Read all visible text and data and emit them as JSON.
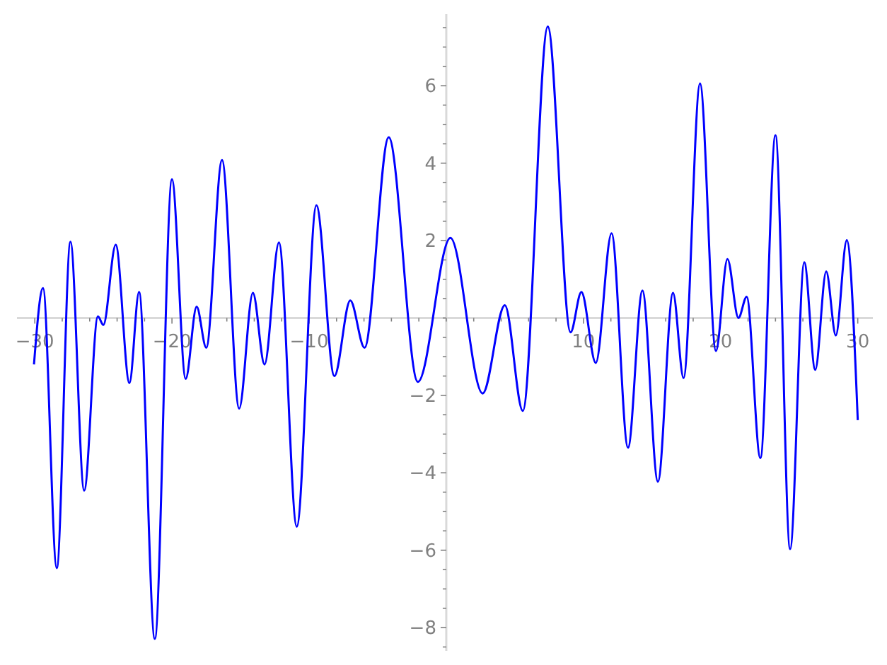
{
  "chart_data": {
    "type": "line",
    "xlim": [
      -31.3,
      31.1
    ],
    "ylim": [
      -8.6,
      7.85
    ],
    "grid": false,
    "line_style": "solid",
    "marker": "none",
    "xticks": [
      {
        "value": -30,
        "label": "−30"
      },
      {
        "value": -28,
        "label": null
      },
      {
        "value": -26,
        "label": null
      },
      {
        "value": -24,
        "label": null
      },
      {
        "value": -22,
        "label": null
      },
      {
        "value": -20,
        "label": "−20"
      },
      {
        "value": -18,
        "label": null
      },
      {
        "value": -16,
        "label": null
      },
      {
        "value": -14,
        "label": null
      },
      {
        "value": -12,
        "label": null
      },
      {
        "value": -10,
        "label": "−10"
      },
      {
        "value": -8,
        "label": null
      },
      {
        "value": -6,
        "label": null
      },
      {
        "value": -4,
        "label": null
      },
      {
        "value": -2,
        "label": null
      },
      {
        "value": 0,
        "label": null
      },
      {
        "value": 2,
        "label": null
      },
      {
        "value": 4,
        "label": null
      },
      {
        "value": 6,
        "label": null
      },
      {
        "value": 8,
        "label": null
      },
      {
        "value": 10,
        "label": "10"
      },
      {
        "value": 12,
        "label": null
      },
      {
        "value": 14,
        "label": null
      },
      {
        "value": 16,
        "label": null
      },
      {
        "value": 18,
        "label": null
      },
      {
        "value": 20,
        "label": "20"
      },
      {
        "value": 22,
        "label": null
      },
      {
        "value": 24,
        "label": null
      },
      {
        "value": 26,
        "label": null
      },
      {
        "value": 28,
        "label": null
      },
      {
        "value": 30,
        "label": "30"
      }
    ],
    "yticks": [
      {
        "value": -8.5,
        "label": null
      },
      {
        "value": -8,
        "label": "−8"
      },
      {
        "value": -7.5,
        "label": null
      },
      {
        "value": -7,
        "label": null
      },
      {
        "value": -6.5,
        "label": null
      },
      {
        "value": -6,
        "label": "−6"
      },
      {
        "value": -5.5,
        "label": null
      },
      {
        "value": -5,
        "label": null
      },
      {
        "value": -4.5,
        "label": null
      },
      {
        "value": -4,
        "label": "−4"
      },
      {
        "value": -3.5,
        "label": null
      },
      {
        "value": -3,
        "label": null
      },
      {
        "value": -2.5,
        "label": null
      },
      {
        "value": -2,
        "label": "−2"
      },
      {
        "value": -1.5,
        "label": null
      },
      {
        "value": -1,
        "label": null
      },
      {
        "value": -0.5,
        "label": null
      },
      {
        "value": 0,
        "label": null
      },
      {
        "value": 0.5,
        "label": null
      },
      {
        "value": 1,
        "label": null
      },
      {
        "value": 1.5,
        "label": null
      },
      {
        "value": 2,
        "label": "2"
      },
      {
        "value": 2.5,
        "label": null
      },
      {
        "value": 3,
        "label": null
      },
      {
        "value": 3.5,
        "label": null
      },
      {
        "value": 4,
        "label": "4"
      },
      {
        "value": 4.5,
        "label": null
      },
      {
        "value": 5,
        "label": null
      },
      {
        "value": 5.5,
        "label": null
      },
      {
        "value": 6,
        "label": "6"
      },
      {
        "value": 6.5,
        "label": null
      },
      {
        "value": 7,
        "label": null
      },
      {
        "value": 7.5,
        "label": null
      }
    ],
    "series": [
      {
        "color": "#0000ff",
        "x": [
          -30.06,
          -29.4,
          -28.4,
          -27.4,
          -26.4,
          -25.4,
          -25.0,
          -24.1,
          -23.1,
          -22.4,
          -21.25,
          -20.0,
          -19.0,
          -18.2,
          -17.5,
          -16.35,
          -15.1,
          -14.1,
          -13.25,
          -12.2,
          -10.9,
          -9.47,
          -8.16,
          -7.0,
          -5.96,
          -4.2,
          -2.07,
          0.3,
          2.65,
          4.27,
          5.58,
          7.4,
          9.06,
          9.85,
          10.9,
          12.05,
          13.25,
          14.3,
          15.43,
          16.53,
          17.3,
          18.5,
          19.66,
          20.5,
          21.3,
          21.9,
          22.9,
          24.0,
          25.07,
          26.1,
          26.9,
          27.7,
          28.4,
          29.2,
          30.0
        ],
        "values": [
          -1.2,
          0.77,
          -6.46,
          1.97,
          -4.46,
          0.04,
          -0.18,
          1.89,
          -1.68,
          0.67,
          -8.29,
          3.58,
          -1.57,
          0.29,
          -0.77,
          4.08,
          -2.34,
          0.65,
          -1.2,
          1.95,
          -5.39,
          2.91,
          -1.5,
          0.45,
          -0.77,
          4.67,
          -1.65,
          2.07,
          -1.95,
          0.33,
          -2.4,
          7.53,
          -0.37,
          0.67,
          -1.16,
          2.19,
          -3.35,
          0.71,
          -4.23,
          0.65,
          -1.55,
          6.06,
          -0.85,
          1.52,
          0,
          0.55,
          -3.62,
          4.72,
          -5.97,
          1.44,
          -1.34,
          1.2,
          -0.45,
          2.01,
          -2.64
        ]
      }
    ]
  }
}
